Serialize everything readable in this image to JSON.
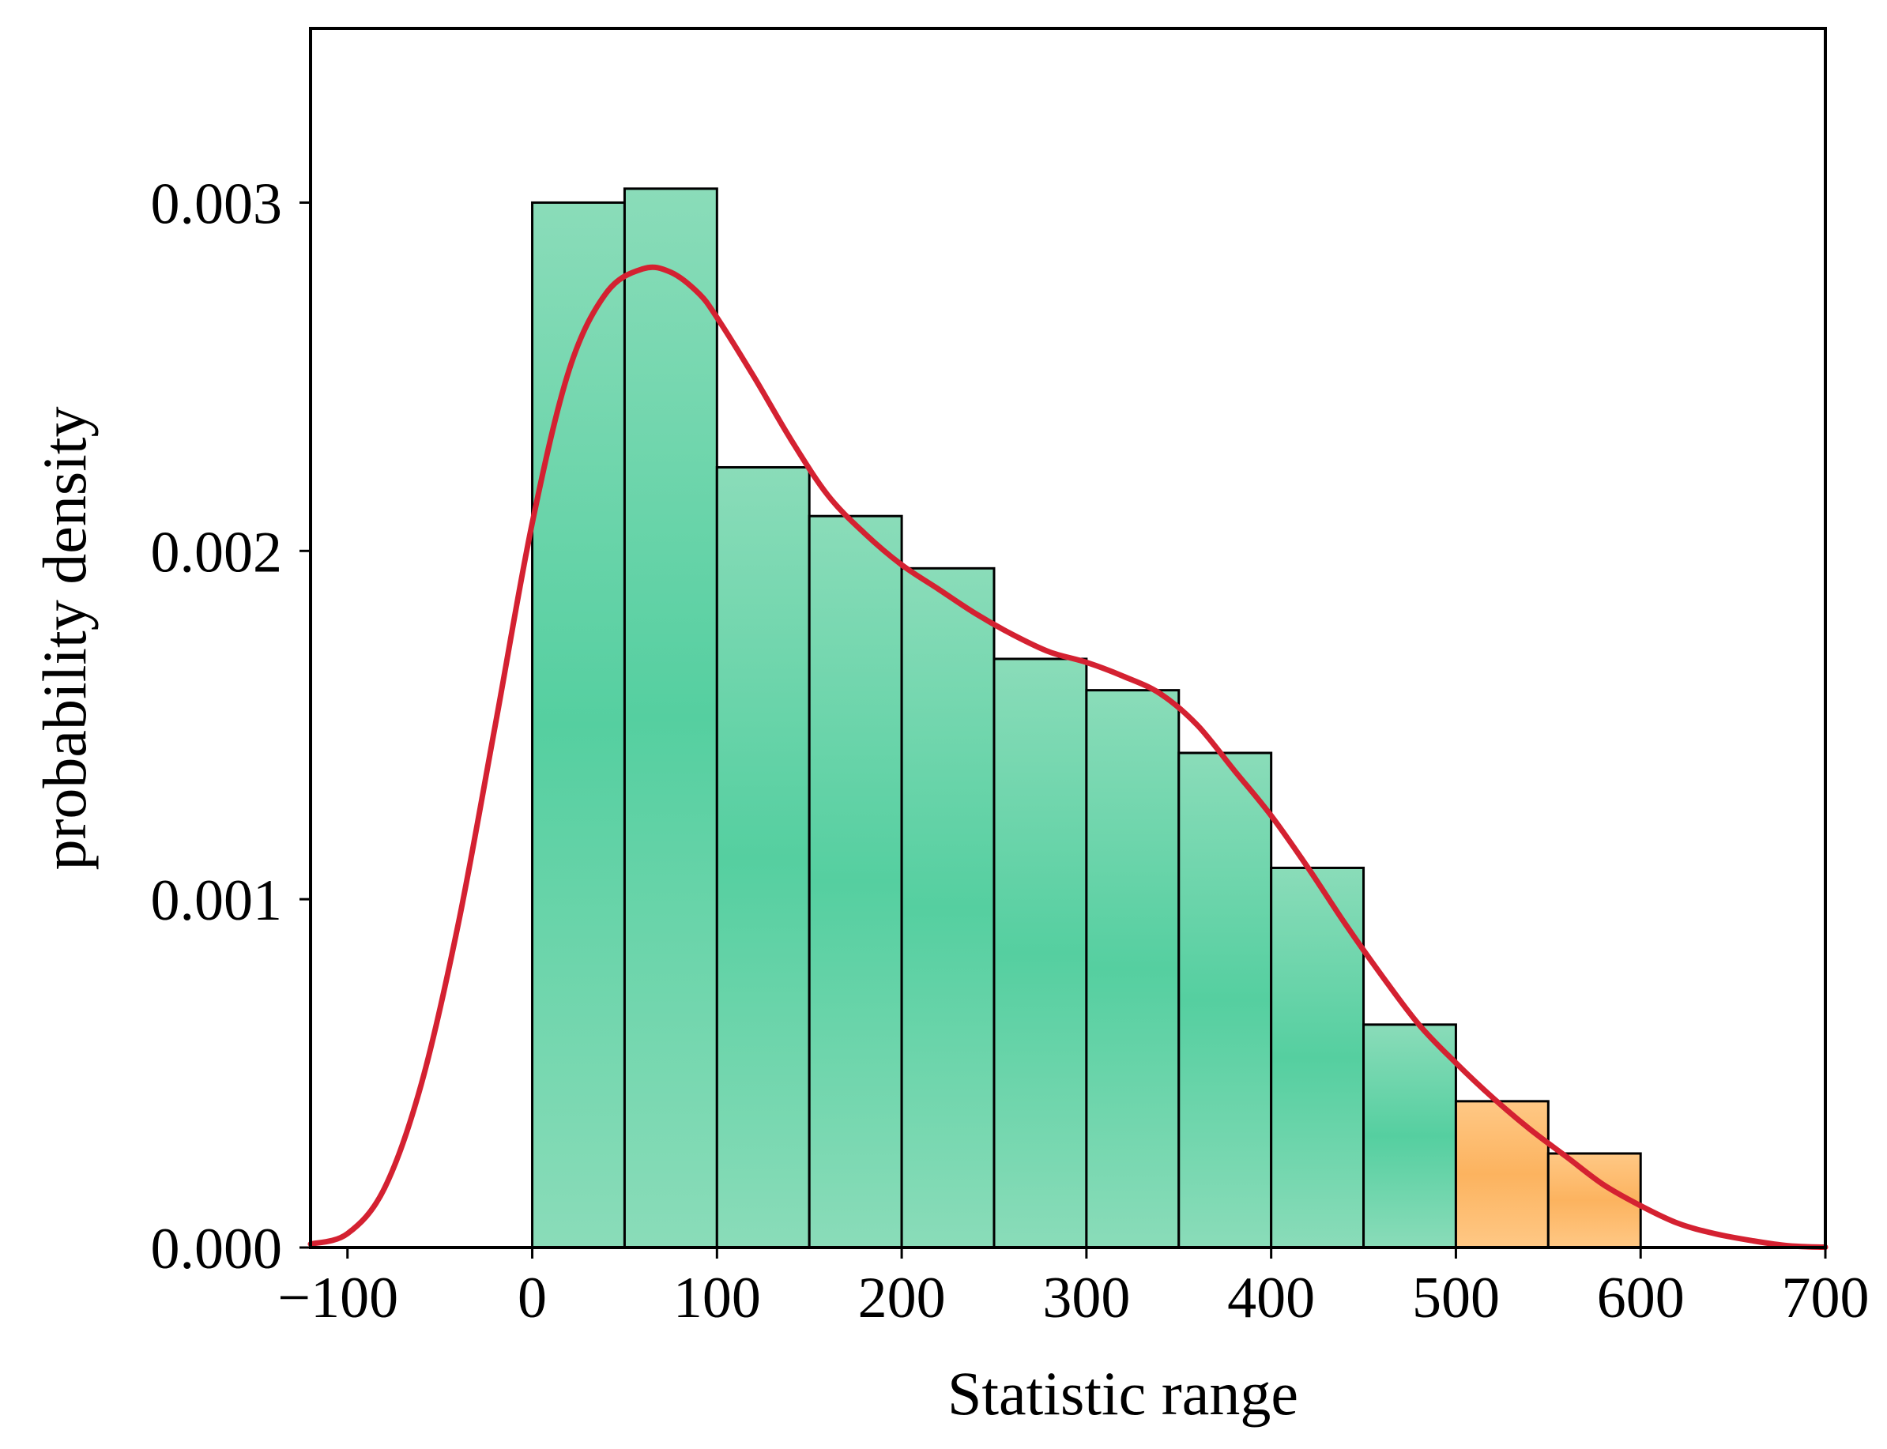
{
  "chart_data": {
    "type": "bar",
    "title": "",
    "xlabel": "Statistic range",
    "ylabel": "probability density",
    "xlim": [
      -120,
      700
    ],
    "ylim": [
      0,
      0.0035
    ],
    "grid": false,
    "legend": "none",
    "x_ticks": [
      {
        "value": -100,
        "label": "−100"
      },
      {
        "value": 0,
        "label": "0"
      },
      {
        "value": 100,
        "label": "100"
      },
      {
        "value": 200,
        "label": "200"
      },
      {
        "value": 300,
        "label": "300"
      },
      {
        "value": 400,
        "label": "400"
      },
      {
        "value": 500,
        "label": "500"
      },
      {
        "value": 600,
        "label": "600"
      },
      {
        "value": 700,
        "label": "700"
      }
    ],
    "y_ticks": [
      {
        "value": 0.0,
        "label": "0.000"
      },
      {
        "value": 0.001,
        "label": "0.001"
      },
      {
        "value": 0.002,
        "label": "0.002"
      },
      {
        "value": 0.003,
        "label": "0.003"
      }
    ],
    "histogram": {
      "name": "histogram",
      "bins": [
        {
          "start": 0,
          "end": 50,
          "value": 0.003,
          "group": "main"
        },
        {
          "start": 50,
          "end": 100,
          "value": 0.00304,
          "group": "main"
        },
        {
          "start": 100,
          "end": 150,
          "value": 0.00224,
          "group": "main"
        },
        {
          "start": 150,
          "end": 200,
          "value": 0.0021,
          "group": "main"
        },
        {
          "start": 200,
          "end": 250,
          "value": 0.00195,
          "group": "main"
        },
        {
          "start": 250,
          "end": 300,
          "value": 0.00169,
          "group": "main"
        },
        {
          "start": 300,
          "end": 350,
          "value": 0.0016,
          "group": "main"
        },
        {
          "start": 350,
          "end": 400,
          "value": 0.00142,
          "group": "main"
        },
        {
          "start": 400,
          "end": 450,
          "value": 0.00109,
          "group": "main"
        },
        {
          "start": 450,
          "end": 500,
          "value": 0.00064,
          "group": "main"
        },
        {
          "start": 500,
          "end": 550,
          "value": 0.00042,
          "group": "tail"
        },
        {
          "start": 550,
          "end": 600,
          "value": 0.00027,
          "group": "tail"
        }
      ]
    },
    "density_curve": {
      "name": "KDE",
      "x": [
        -120,
        -100,
        -80,
        -60,
        -40,
        -20,
        0,
        20,
        40,
        60,
        75,
        90,
        100,
        120,
        140,
        160,
        180,
        200,
        220,
        240,
        260,
        280,
        300,
        320,
        340,
        360,
        380,
        400,
        420,
        440,
        460,
        480,
        500,
        520,
        540,
        560,
        580,
        600,
        620,
        640,
        660,
        680,
        700
      ],
      "y": [
        1e-05,
        4e-05,
        0.00017,
        0.00047,
        0.00093,
        0.0015,
        0.00208,
        0.00252,
        0.00274,
        0.00281,
        0.0028,
        0.00274,
        0.00267,
        0.0025,
        0.00232,
        0.00216,
        0.00205,
        0.00196,
        0.00189,
        0.00182,
        0.00176,
        0.00171,
        0.00168,
        0.00164,
        0.00159,
        0.0015,
        0.00137,
        0.00124,
        0.00109,
        0.00093,
        0.00078,
        0.00064,
        0.00053,
        0.00043,
        0.00034,
        0.00026,
        0.00018,
        0.00012,
        7e-05,
        4e-05,
        2e-05,
        5e-06,
        1e-06
      ]
    },
    "colors": {
      "main_fill_light": "#8adcb9",
      "main_fill_dark": "#55cfa0",
      "tail_fill_light": "#ffc885",
      "tail_fill_dark": "#fcb35f",
      "bar_stroke": "#000000",
      "curve": "#d42131",
      "axis": "#000000"
    }
  }
}
